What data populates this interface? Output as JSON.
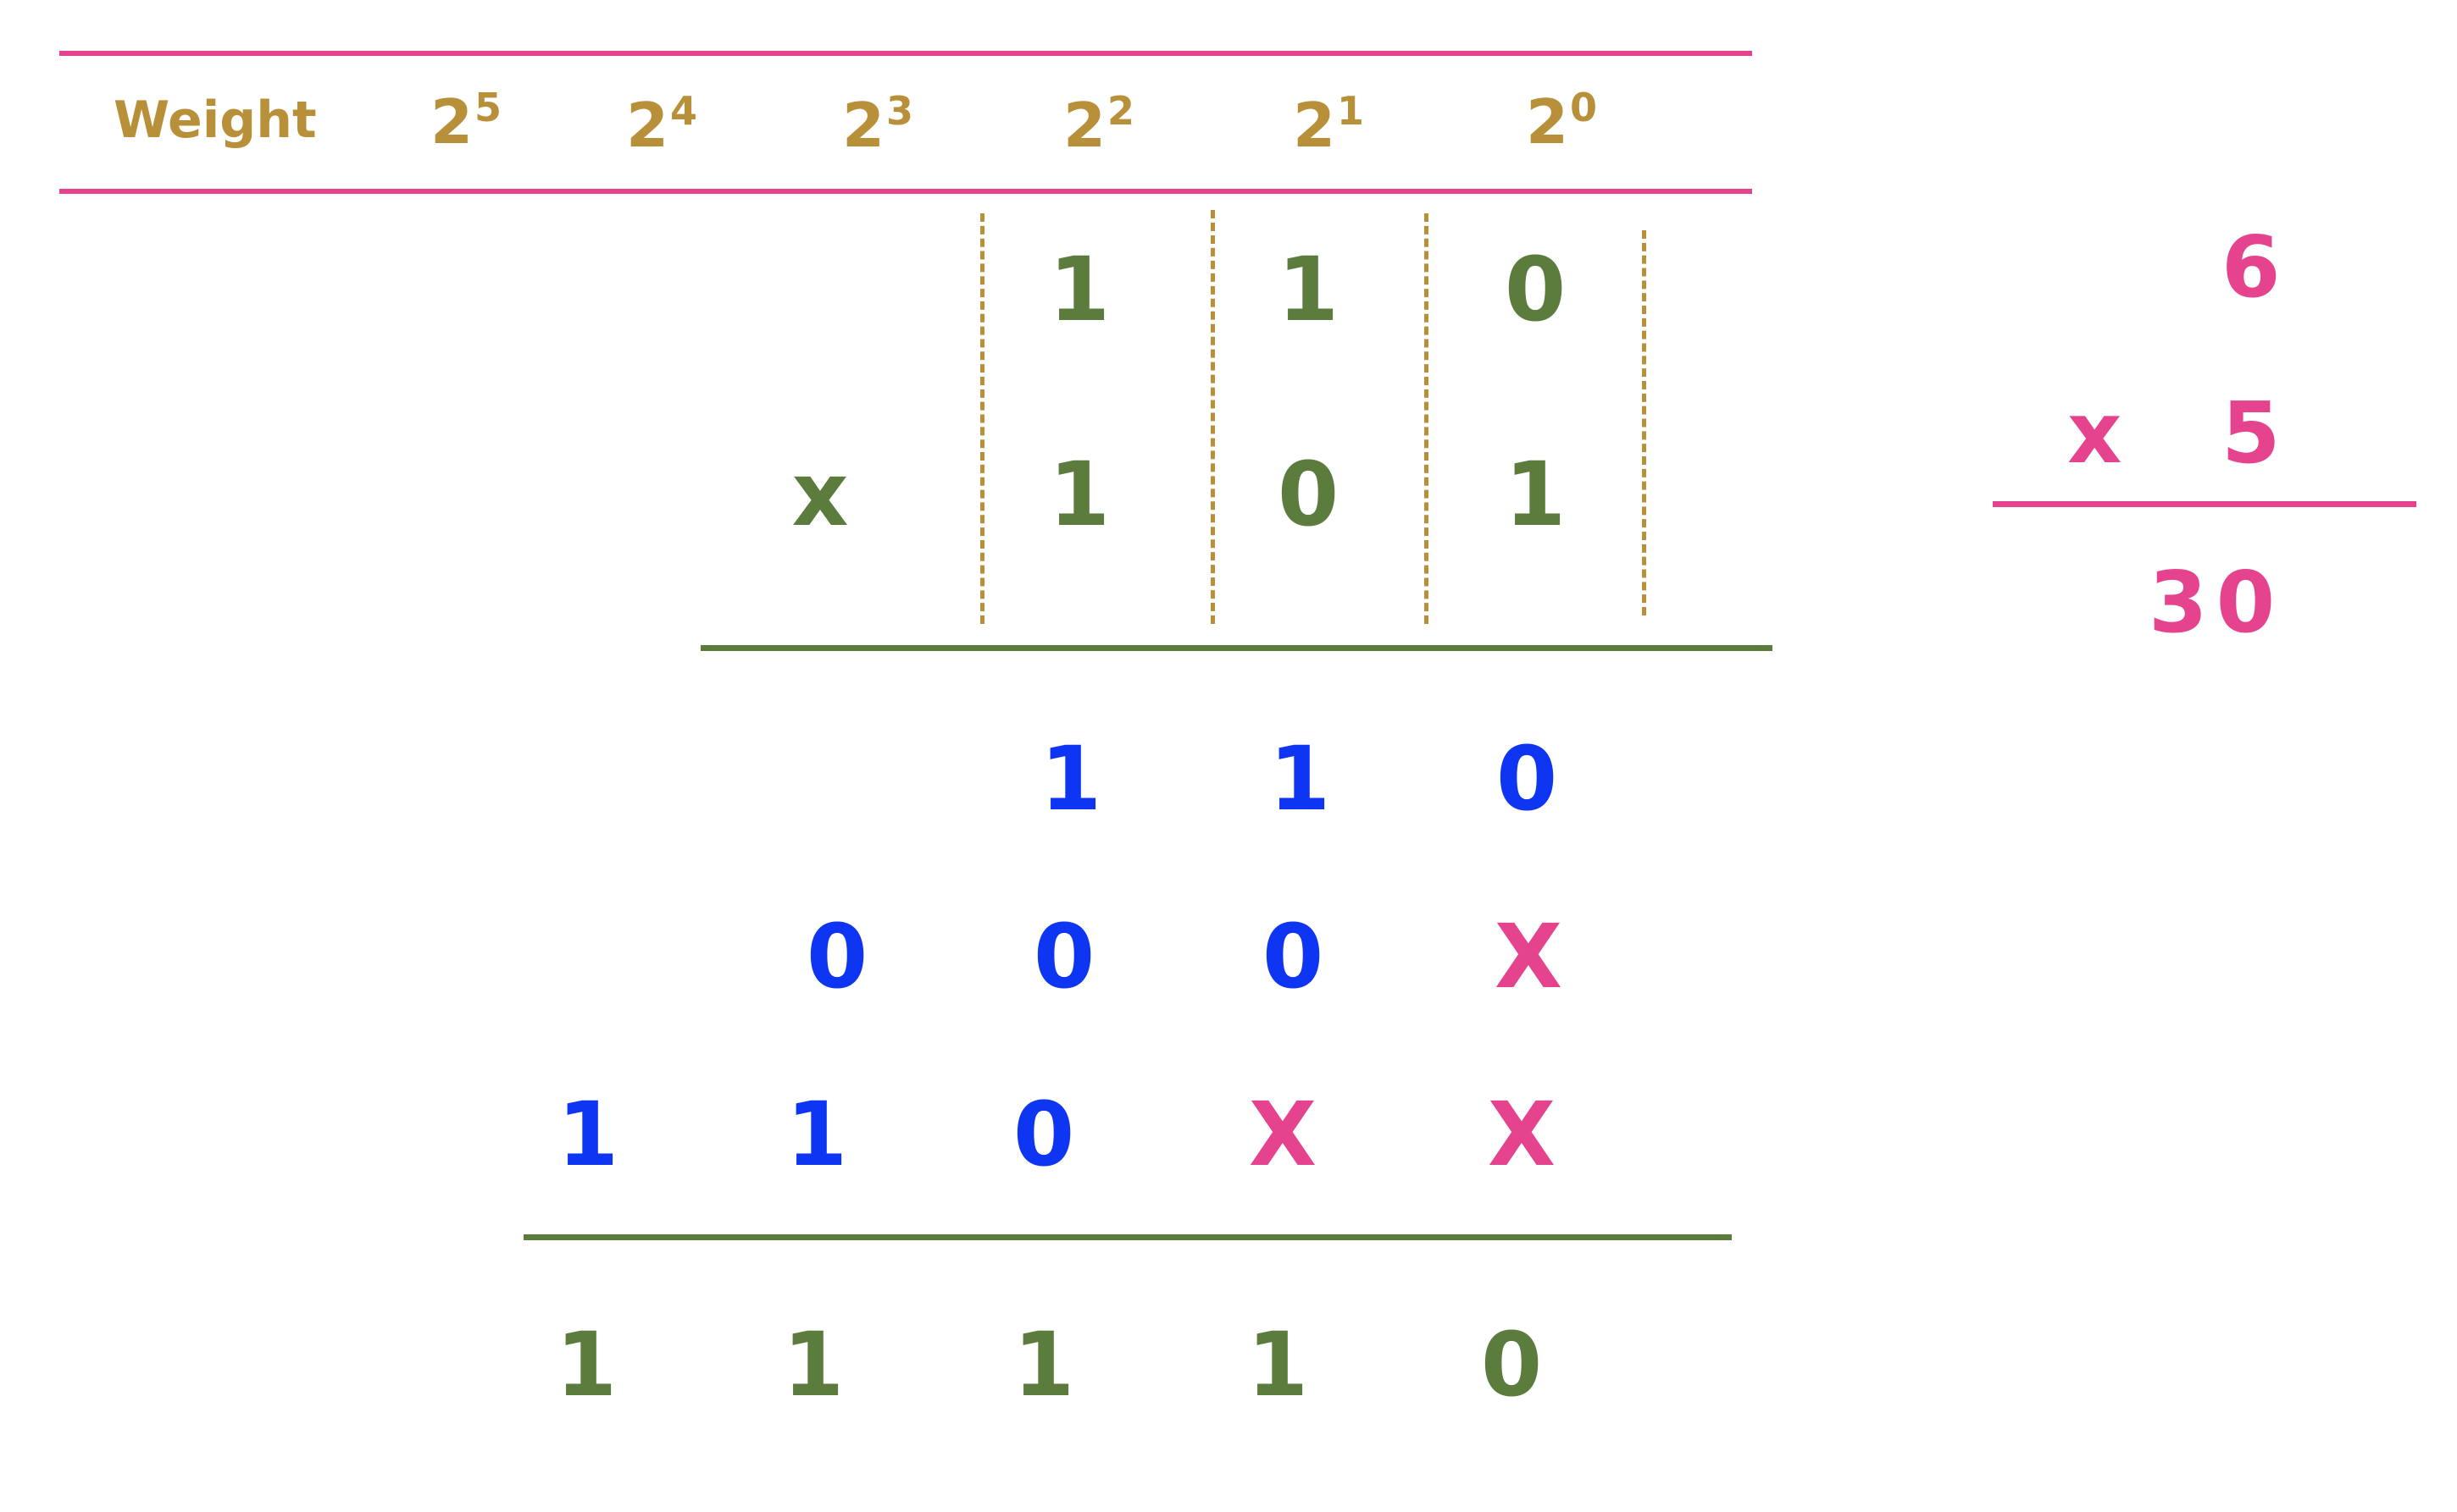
{
  "header": {
    "label": "Weight",
    "weights": [
      {
        "base": "2",
        "exp": "5"
      },
      {
        "base": "2",
        "exp": "4"
      },
      {
        "base": "2",
        "exp": "3"
      },
      {
        "base": "2",
        "exp": "2"
      },
      {
        "base": "2",
        "exp": "1"
      },
      {
        "base": "2",
        "exp": "0"
      }
    ]
  },
  "multiplicand": [
    "1",
    "1",
    "0"
  ],
  "multiplier": {
    "sign": "x",
    "digits": [
      "1",
      "0",
      "1"
    ]
  },
  "partial_products": [
    [
      "1",
      "1",
      "0"
    ],
    [
      "0",
      "0",
      "0",
      "X"
    ],
    [
      "1",
      "1",
      "0",
      "X",
      "X"
    ]
  ],
  "result": [
    "1",
    "1",
    "1",
    "1",
    "0"
  ],
  "decimal_check": {
    "top": "6",
    "sign": "x",
    "bottom": "5",
    "product": "30"
  },
  "colors": {
    "pink": "#e6438f",
    "green": "#5b7c3c",
    "blue": "#0d35f2",
    "gold": "#b8903a"
  }
}
